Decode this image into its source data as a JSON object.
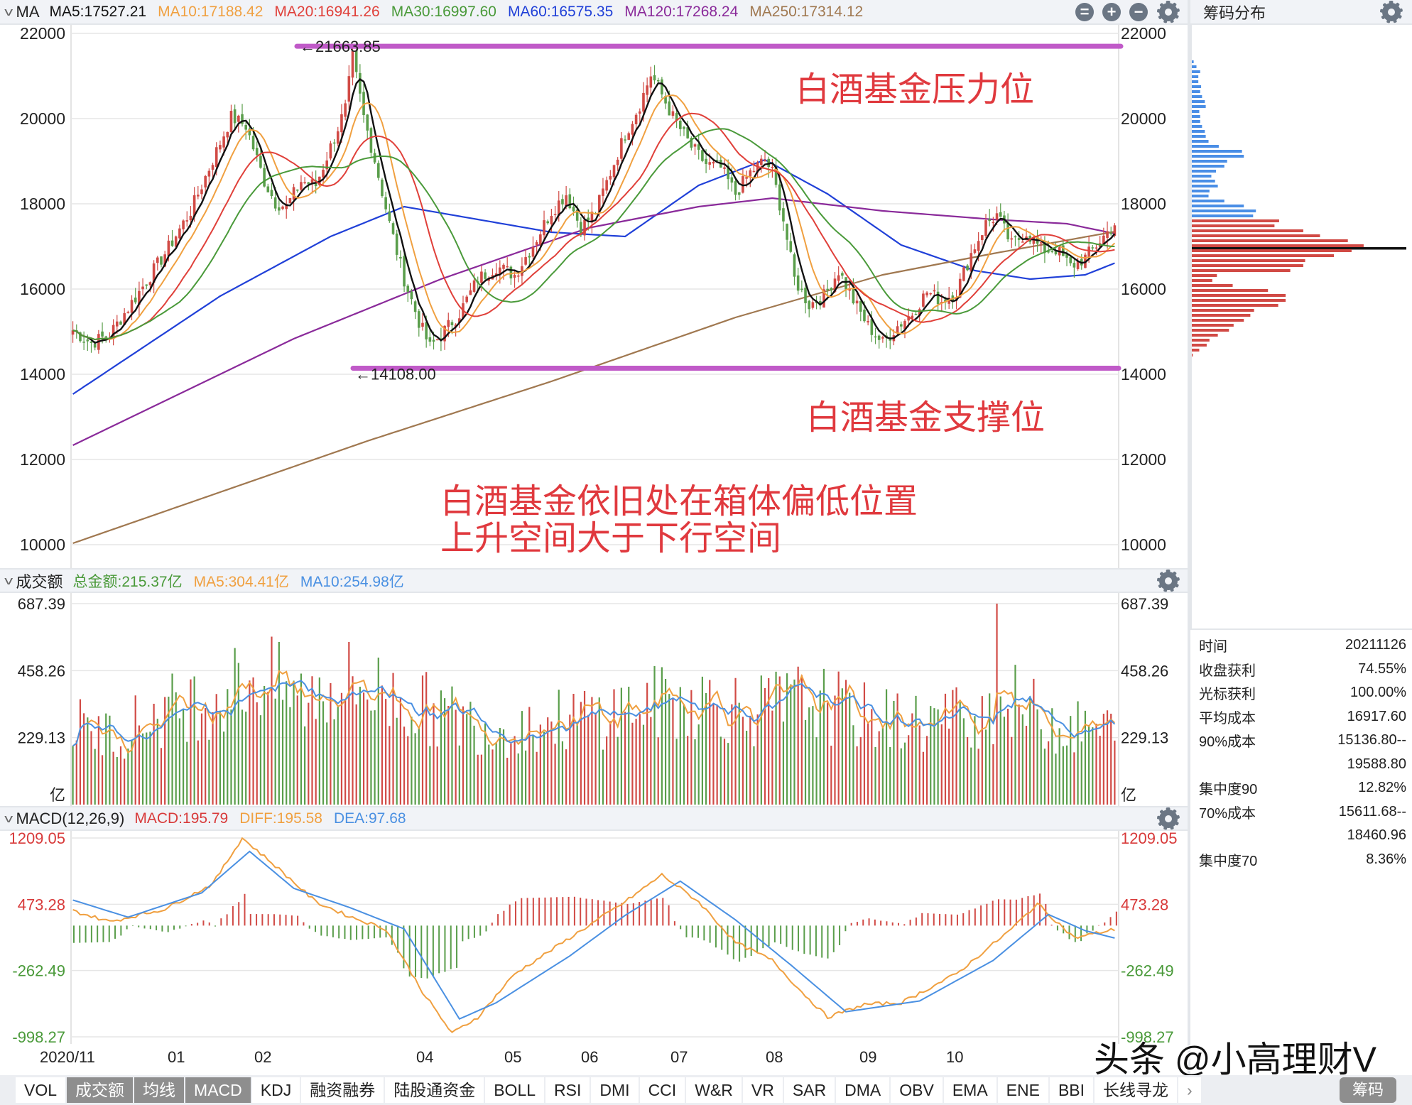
{
  "main_panel": {
    "indicator_name": "MA",
    "legend": [
      {
        "label": "MA5:17527.21",
        "color": "#111111"
      },
      {
        "label": "MA10:17188.42",
        "color": "#f0a040"
      },
      {
        "label": "MA20:16941.26",
        "color": "#e0403a"
      },
      {
        "label": "MA30:16997.60",
        "color": "#4a9a3a"
      },
      {
        "label": "MA60:16575.35",
        "color": "#2040d8"
      },
      {
        "label": "MA120:17268.24",
        "color": "#8a2a9a"
      },
      {
        "label": "MA250:17314.12",
        "color": "#a07850"
      }
    ],
    "buttons": {
      "collapse_icon": "⊜",
      "add_icon": "+",
      "remove_icon": "−"
    },
    "y_ticks": [
      "22000",
      "20000",
      "18000",
      "16000",
      "14000",
      "12000",
      "10000"
    ],
    "high_marker": "←21663.85",
    "low_marker": "←14108.00",
    "annotations": {
      "resistance": "白酒基金压力位",
      "support": "白酒基金支撑位",
      "note_line1": "白酒基金依旧处在箱体偏低位置",
      "note_line2": "上升空间大于下行空间"
    }
  },
  "volume_panel": {
    "indicator_name": "成交额",
    "legend": [
      {
        "label": "总金额:215.37亿",
        "color": "#4a9a3a"
      },
      {
        "label": "MA5:304.41亿",
        "color": "#f0a040"
      },
      {
        "label": "MA10:254.98亿",
        "color": "#4a90e2"
      }
    ],
    "y_ticks": [
      "687.39",
      "458.26",
      "229.13"
    ],
    "unit": "亿"
  },
  "macd_panel": {
    "indicator_name": "MACD(12,26,9)",
    "legend": [
      {
        "label": "MACD:195.79",
        "color": "#d83a3a"
      },
      {
        "label": "DIFF:195.58",
        "color": "#f0a040"
      },
      {
        "label": "DEA:97.68",
        "color": "#4a90e2"
      }
    ],
    "y_ticks": [
      "1209.05",
      "473.28",
      "-262.49",
      "-998.27"
    ]
  },
  "x_axis": {
    "labels": [
      "2020/11",
      "01",
      "02",
      "04",
      "05",
      "06",
      "07",
      "08",
      "09",
      "10"
    ]
  },
  "right_panel": {
    "title": "筹码分布",
    "info": [
      {
        "label": "时间",
        "value": "20211126"
      },
      {
        "label": "收盘获利",
        "value": "74.55%"
      },
      {
        "label": "光标获利",
        "value": "100.00%"
      },
      {
        "label": "平均成本",
        "value": "16917.60"
      },
      {
        "label": "90%成本",
        "value": "15136.80--"
      },
      {
        "label": "",
        "value": "19588.80"
      },
      {
        "label": "集中度90",
        "value": "12.82%"
      },
      {
        "label": "70%成本",
        "value": "15611.68--"
      },
      {
        "label": "",
        "value": "18460.96"
      },
      {
        "label": "集中度70",
        "value": "8.36%"
      }
    ]
  },
  "bottom_tabs": {
    "tabs": [
      {
        "label": "VOL",
        "active": false
      },
      {
        "label": "成交额",
        "active": true
      },
      {
        "label": "均线",
        "active": true
      },
      {
        "label": "MACD",
        "active": true
      },
      {
        "label": "KDJ",
        "active": false
      },
      {
        "label": "融资融券",
        "active": false
      },
      {
        "label": "陆股通资金",
        "active": false
      },
      {
        "label": "BOLL",
        "active": false
      },
      {
        "label": "RSI",
        "active": false
      },
      {
        "label": "DMI",
        "active": false
      },
      {
        "label": "CCI",
        "active": false
      },
      {
        "label": "W&R",
        "active": false
      },
      {
        "label": "VR",
        "active": false
      },
      {
        "label": "SAR",
        "active": false
      },
      {
        "label": "DMA",
        "active": false
      },
      {
        "label": "OBV",
        "active": false
      },
      {
        "label": "EMA",
        "active": false
      },
      {
        "label": "ENE",
        "active": false
      },
      {
        "label": "BBI",
        "active": false
      },
      {
        "label": "长线寻龙",
        "active": false
      }
    ],
    "more_arrow": "›",
    "chip_button": "筹码"
  },
  "watermark": "头条 @小高理财V",
  "chart_data": [
    {
      "type": "candlestick",
      "title": "MA (白酒基金 daily K-line)",
      "x_range": [
        "2020/11",
        "2021/11/26"
      ],
      "x_tick_labels": [
        "2020/11",
        "01",
        "02",
        "04",
        "05",
        "06",
        "07",
        "08",
        "09",
        "10"
      ],
      "ylim": [
        10000,
        22000
      ],
      "y_ticks": [
        10000,
        12000,
        14000,
        16000,
        18000,
        20000,
        22000
      ],
      "grid": true,
      "price_path": [
        [
          0,
          15000
        ],
        [
          5,
          14700
        ],
        [
          10,
          14900
        ],
        [
          18,
          15900
        ],
        [
          25,
          16800
        ],
        [
          32,
          17800
        ],
        [
          38,
          19000
        ],
        [
          43,
          20000
        ],
        [
          47,
          19800
        ],
        [
          52,
          18500
        ],
        [
          55,
          18000
        ],
        [
          58,
          17900
        ],
        [
          62,
          18500
        ],
        [
          66,
          18400
        ],
        [
          70,
          19300
        ],
        [
          74,
          20200
        ],
        [
          76,
          21400
        ],
        [
          79,
          20000
        ],
        [
          82,
          19000
        ],
        [
          86,
          17500
        ],
        [
          90,
          16200
        ],
        [
          94,
          15200
        ],
        [
          97,
          14600
        ],
        [
          100,
          14900
        ],
        [
          105,
          15400
        ],
        [
          110,
          16200
        ],
        [
          115,
          16500
        ],
        [
          120,
          16300
        ],
        [
          125,
          17000
        ],
        [
          130,
          17800
        ],
        [
          134,
          18200
        ],
        [
          138,
          17400
        ],
        [
          142,
          17800
        ],
        [
          146,
          18700
        ],
        [
          150,
          19600
        ],
        [
          154,
          20300
        ],
        [
          157,
          21000
        ],
        [
          159,
          20700
        ],
        [
          163,
          20000
        ],
        [
          168,
          19300
        ],
        [
          172,
          18900
        ],
        [
          176,
          18800
        ],
        [
          180,
          18200
        ],
        [
          184,
          18700
        ],
        [
          188,
          19000
        ],
        [
          190,
          18700
        ],
        [
          193,
          17600
        ],
        [
          196,
          16200
        ],
        [
          200,
          15600
        ],
        [
          204,
          15800
        ],
        [
          208,
          16400
        ],
        [
          212,
          15700
        ],
        [
          216,
          15100
        ],
        [
          220,
          14700
        ],
        [
          224,
          15100
        ],
        [
          228,
          15400
        ],
        [
          232,
          15900
        ],
        [
          236,
          15700
        ],
        [
          240,
          15900
        ],
        [
          244,
          16800
        ],
        [
          248,
          17500
        ],
        [
          251,
          17700
        ],
        [
          255,
          17000
        ],
        [
          259,
          17300
        ],
        [
          263,
          16900
        ],
        [
          267,
          16900
        ],
        [
          271,
          16500
        ],
        [
          275,
          16700
        ],
        [
          279,
          17100
        ],
        [
          283,
          17500
        ]
      ],
      "ma_series": [
        {
          "name": "MA5",
          "last": 17527.21,
          "color": "#111111"
        },
        {
          "name": "MA10",
          "last": 17188.42,
          "color": "#f0a040"
        },
        {
          "name": "MA20",
          "last": 16941.26,
          "color": "#e0403a"
        },
        {
          "name": "MA30",
          "last": 16997.6,
          "color": "#4a9a3a"
        },
        {
          "name": "MA60",
          "last": 16575.35,
          "color": "#2040d8",
          "path": [
            [
              0,
              13500
            ],
            [
              40,
              15800
            ],
            [
              70,
              17200
            ],
            [
              90,
              17900
            ],
            [
              110,
              17600
            ],
            [
              130,
              17300
            ],
            [
              150,
              17200
            ],
            [
              170,
              18400
            ],
            [
              188,
              19000
            ],
            [
              205,
              18200
            ],
            [
              225,
              17000
            ],
            [
              245,
              16400
            ],
            [
              260,
              16200
            ],
            [
              275,
              16300
            ],
            [
              283,
              16575
            ]
          ]
        },
        {
          "name": "MA120",
          "last": 17268.24,
          "color": "#8a2a9a",
          "path": [
            [
              0,
              12300
            ],
            [
              60,
              14800
            ],
            [
              100,
              16200
            ],
            [
              140,
              17400
            ],
            [
              170,
              17900
            ],
            [
              190,
              18100
            ],
            [
              220,
              17800
            ],
            [
              250,
              17600
            ],
            [
              270,
              17500
            ],
            [
              283,
              17268
            ]
          ]
        },
        {
          "name": "MA250",
          "last": 17314.12,
          "color": "#a07850",
          "path": [
            [
              0,
              10000
            ],
            [
              80,
              12400
            ],
            [
              130,
              13800
            ],
            [
              180,
              15300
            ],
            [
              220,
              16300
            ],
            [
              250,
              16800
            ],
            [
              283,
              17314
            ]
          ]
        }
      ],
      "horizontal_lines": [
        {
          "label": "白酒基金压力位",
          "value": 21663.85,
          "color": "#c05ac8"
        },
        {
          "label": "白酒基金支撑位",
          "value": 14108.0,
          "color": "#c05ac8"
        }
      ],
      "markers": [
        {
          "label": "←21663.85",
          "value": 21663.85
        },
        {
          "label": "←14108.00",
          "value": 14108.0
        }
      ],
      "annotations": [
        "白酒基金依旧处在箱体偏低位置",
        "上升空间大于下行空间"
      ]
    },
    {
      "type": "bar",
      "title": "成交额 (亿)",
      "ylim": [
        0,
        687.39
      ],
      "y_ticks": [
        229.13,
        458.26,
        687.39
      ],
      "ylabel": "亿",
      "series": [
        {
          "name": "总金额",
          "last": 215.37,
          "color": "#4a9a3a"
        },
        {
          "name": "MA5",
          "last": 304.41,
          "color": "#f0a040"
        },
        {
          "name": "MA10",
          "last": 254.98,
          "color": "#4a90e2"
        }
      ],
      "ma10_path": [
        [
          0,
          270
        ],
        [
          10,
          240
        ],
        [
          25,
          320
        ],
        [
          40,
          380
        ],
        [
          50,
          440
        ],
        [
          62,
          360
        ],
        [
          72,
          420
        ],
        [
          80,
          400
        ],
        [
          95,
          330
        ],
        [
          115,
          260
        ],
        [
          135,
          290
        ],
        [
          155,
          340
        ],
        [
          170,
          360
        ],
        [
          185,
          320
        ],
        [
          200,
          360
        ],
        [
          215,
          300
        ],
        [
          230,
          280
        ],
        [
          245,
          310
        ],
        [
          255,
          350
        ],
        [
          270,
          260
        ],
        [
          283,
          255
        ]
      ],
      "spikes": [
        {
          "index": 251,
          "value": 687.39
        }
      ]
    },
    {
      "type": "bar+line",
      "title": "MACD(12,26,9)",
      "ylim": [
        -998.27,
        1209.05
      ],
      "y_ticks": [
        -998.27,
        -262.49,
        473.28,
        1209.05
      ],
      "series": [
        {
          "name": "MACD",
          "last": 195.79,
          "color": "#d83a3a"
        },
        {
          "name": "DIFF",
          "last": 195.58,
          "color": "#f0a040"
        },
        {
          "name": "DEA",
          "last": 97.68,
          "color": "#4a90e2"
        }
      ],
      "diff_path": [
        [
          0,
          400
        ],
        [
          10,
          280
        ],
        [
          25,
          420
        ],
        [
          38,
          700
        ],
        [
          46,
          1209
        ],
        [
          55,
          900
        ],
        [
          66,
          500
        ],
        [
          75,
          340
        ],
        [
          85,
          200
        ],
        [
          95,
          -500
        ],
        [
          103,
          -960
        ],
        [
          110,
          -780
        ],
        [
          120,
          -300
        ],
        [
          135,
          100
        ],
        [
          150,
          500
        ],
        [
          160,
          800
        ],
        [
          170,
          500
        ],
        [
          180,
          50
        ],
        [
          190,
          -150
        ],
        [
          198,
          -500
        ],
        [
          205,
          -780
        ],
        [
          215,
          -640
        ],
        [
          225,
          -620
        ],
        [
          240,
          -300
        ],
        [
          255,
          200
        ],
        [
          262,
          480
        ],
        [
          272,
          100
        ],
        [
          283,
          195
        ]
      ],
      "dea_path": [
        [
          0,
          520
        ],
        [
          15,
          330
        ],
        [
          35,
          600
        ],
        [
          48,
          1060
        ],
        [
          60,
          650
        ],
        [
          75,
          440
        ],
        [
          90,
          200
        ],
        [
          105,
          -800
        ],
        [
          115,
          -620
        ],
        [
          135,
          -100
        ],
        [
          150,
          350
        ],
        [
          165,
          730
        ],
        [
          180,
          300
        ],
        [
          195,
          -200
        ],
        [
          210,
          -720
        ],
        [
          230,
          -600
        ],
        [
          250,
          -150
        ],
        [
          265,
          360
        ],
        [
          275,
          180
        ],
        [
          283,
          98
        ]
      ]
    },
    {
      "type": "horizontal_bar",
      "title": "筹码分布",
      "price_range": [
        14500,
        21500
      ],
      "description": "Chip distribution: blue bars (above current price) thinner, red bars (below current price) dominant; peak concentration near 17000 (current price line in black)",
      "blue_rows": [
        2,
        5,
        9,
        7,
        7,
        10,
        9,
        11,
        14,
        15,
        8,
        9,
        9,
        11,
        14,
        15,
        18,
        29,
        54,
        56,
        38,
        35,
        26,
        21,
        25,
        28,
        19,
        18,
        35,
        56,
        69,
        66
      ],
      "red_rows": [
        94,
        89,
        120,
        138,
        168,
        185,
        172,
        153,
        122,
        120,
        106,
        27,
        22,
        44,
        82,
        101,
        101,
        93,
        67,
        63,
        56,
        45,
        40,
        28,
        19,
        16,
        8,
        1
      ]
    }
  ]
}
